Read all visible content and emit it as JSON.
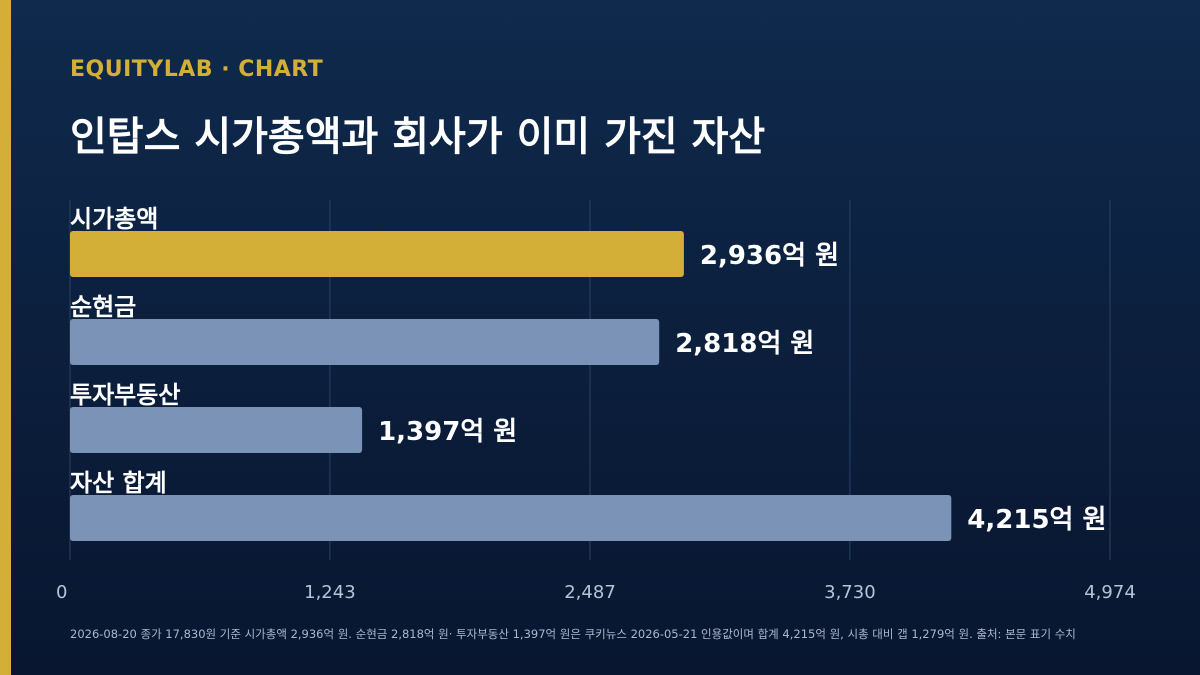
{
  "header": {
    "kicker": "EQUITYLAB · CHART",
    "title": "인탑스 시가총액과 회사가 이미 가진 자산"
  },
  "colors": {
    "accent": "#d4af37",
    "bar_default": "#7a93b6",
    "bar_highlight": "#d4af37",
    "gridline": "#2a4266",
    "tick_label": "#b7c4d6"
  },
  "chart_data": {
    "type": "bar",
    "orientation": "horizontal",
    "categories": [
      "시가총액",
      "순현금",
      "투자부동산",
      "자산 합계"
    ],
    "values": [
      2936,
      2818,
      1397,
      4215
    ],
    "value_labels": [
      "2,936억 원",
      "2,818억 원",
      "1,397억 원",
      "4,215억 원"
    ],
    "highlight_index": 0,
    "xlim": [
      0,
      4974
    ],
    "xticks": [
      0,
      1243,
      2487,
      3730,
      4974
    ],
    "xtick_labels": [
      "0",
      "1,243",
      "2,487",
      "3,730",
      "4,974"
    ],
    "grid": true
  },
  "footnote": "2026-08-20 종가 17,830원 기준 시가총액 2,936억 원. 순현금 2,818억 원· 투자부동산 1,397억 원은 쿠키뉴스 2026-05-21 인용값이며 합계 4,215억 원, 시총 대비 갭 1,279억 원. 출처: 본문 표기 수치"
}
